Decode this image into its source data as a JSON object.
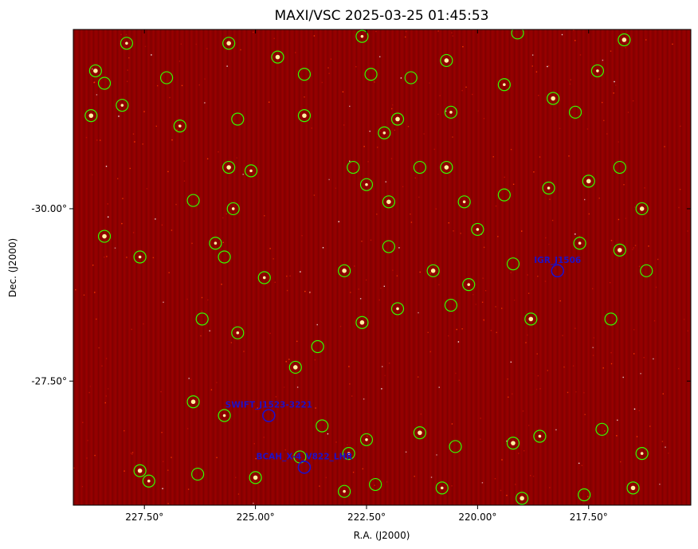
{
  "figure": {
    "title": "MAXI/VSC 2025-03-25 01:45:53",
    "xlabel": "R.A. (J2000)",
    "ylabel": "Dec. (J2000)",
    "x_ticks": [
      "227.50°",
      "225.00°",
      "222.50°",
      "220.00°",
      "217.50°"
    ],
    "y_ticks": [
      "-30.00°",
      "-27.50°"
    ]
  },
  "chart_data": {
    "type": "scatter",
    "title": "MAXI/VSC 2025-03-25 01:45:53",
    "xlabel": "R.A. (J2000)",
    "ylabel": "Dec. (J2000)",
    "x_tick_values": [
      227.5,
      225.0,
      222.5,
      220.0,
      217.5
    ],
    "y_tick_values": [
      -30.0,
      -27.5
    ],
    "xlim": [
      229.1,
      215.2
    ],
    "ylim": [
      -32.6,
      -25.7
    ],
    "background": {
      "colormap": "hot",
      "base_color": "#8b0000"
    },
    "grid": false,
    "legend": "none",
    "catalog_circle_color": "#33ff00",
    "target_color": "#1e10c8",
    "targets": [
      {
        "label": "IGR_J1506",
        "ra": 218.2,
        "dec": -29.1
      },
      {
        "label": "SWIFT_J1523-3221",
        "ra": 224.7,
        "dec": -27.0
      },
      {
        "label": "BCAH_X-4_V822_LHR",
        "ra": 223.9,
        "dec": -26.25
      }
    ],
    "catalog_sources": [
      {
        "ra": 227.9,
        "dec": -32.4
      },
      {
        "ra": 228.6,
        "dec": -32.0
      },
      {
        "ra": 228.4,
        "dec": -31.82
      },
      {
        "ra": 228.7,
        "dec": -31.35
      },
      {
        "ra": 228.0,
        "dec": -31.5
      },
      {
        "ra": 227.0,
        "dec": -31.9
      },
      {
        "ra": 226.7,
        "dec": -31.2
      },
      {
        "ra": 225.6,
        "dec": -32.4
      },
      {
        "ra": 225.4,
        "dec": -31.3
      },
      {
        "ra": 225.6,
        "dec": -30.6
      },
      {
        "ra": 225.1,
        "dec": -30.55
      },
      {
        "ra": 226.4,
        "dec": -30.12
      },
      {
        "ra": 225.5,
        "dec": -30.0
      },
      {
        "ra": 224.5,
        "dec": -32.2
      },
      {
        "ra": 223.9,
        "dec": -31.95
      },
      {
        "ra": 223.9,
        "dec": -31.35
      },
      {
        "ra": 222.6,
        "dec": -32.5
      },
      {
        "ra": 222.4,
        "dec": -31.95
      },
      {
        "ra": 222.1,
        "dec": -31.1
      },
      {
        "ra": 221.8,
        "dec": -31.3
      },
      {
        "ra": 221.5,
        "dec": -31.9
      },
      {
        "ra": 220.7,
        "dec": -32.15
      },
      {
        "ra": 220.6,
        "dec": -31.4
      },
      {
        "ra": 219.1,
        "dec": -32.55
      },
      {
        "ra": 219.4,
        "dec": -31.8
      },
      {
        "ra": 218.3,
        "dec": -31.6
      },
      {
        "ra": 217.8,
        "dec": -31.4
      },
      {
        "ra": 216.7,
        "dec": -32.45
      },
      {
        "ra": 217.3,
        "dec": -32.0
      },
      {
        "ra": 222.8,
        "dec": -30.6
      },
      {
        "ra": 222.5,
        "dec": -30.35
      },
      {
        "ra": 222.0,
        "dec": -30.1
      },
      {
        "ra": 221.3,
        "dec": -30.6
      },
      {
        "ra": 220.7,
        "dec": -30.6
      },
      {
        "ra": 220.3,
        "dec": -30.1
      },
      {
        "ra": 219.4,
        "dec": -30.2
      },
      {
        "ra": 218.4,
        "dec": -30.3
      },
      {
        "ra": 217.5,
        "dec": -30.4
      },
      {
        "ra": 216.8,
        "dec": -30.6
      },
      {
        "ra": 216.3,
        "dec": -30.0
      },
      {
        "ra": 225.9,
        "dec": -29.5
      },
      {
        "ra": 225.7,
        "dec": -29.3
      },
      {
        "ra": 224.8,
        "dec": -29.0
      },
      {
        "ra": 223.0,
        "dec": -29.1
      },
      {
        "ra": 222.0,
        "dec": -29.45
      },
      {
        "ra": 221.0,
        "dec": -29.1
      },
      {
        "ra": 220.0,
        "dec": -29.7
      },
      {
        "ra": 219.2,
        "dec": -29.2
      },
      {
        "ra": 217.7,
        "dec": -29.5
      },
      {
        "ra": 216.8,
        "dec": -29.4
      },
      {
        "ra": 216.2,
        "dec": -29.1
      },
      {
        "ra": 228.4,
        "dec": -29.6
      },
      {
        "ra": 227.6,
        "dec": -29.3
      },
      {
        "ra": 226.2,
        "dec": -28.4
      },
      {
        "ra": 225.4,
        "dec": -28.2
      },
      {
        "ra": 224.1,
        "dec": -27.7
      },
      {
        "ra": 223.6,
        "dec": -28.0
      },
      {
        "ra": 222.6,
        "dec": -28.35
      },
      {
        "ra": 221.8,
        "dec": -28.55
      },
      {
        "ra": 220.6,
        "dec": -28.6
      },
      {
        "ra": 220.2,
        "dec": -28.9
      },
      {
        "ra": 218.8,
        "dec": -28.4
      },
      {
        "ra": 217.0,
        "dec": -28.4
      },
      {
        "ra": 226.4,
        "dec": -27.2
      },
      {
        "ra": 225.7,
        "dec": -27.0
      },
      {
        "ra": 223.5,
        "dec": -26.85
      },
      {
        "ra": 222.5,
        "dec": -26.65
      },
      {
        "ra": 221.3,
        "dec": -26.75
      },
      {
        "ra": 220.5,
        "dec": -26.55
      },
      {
        "ra": 219.2,
        "dec": -26.6
      },
      {
        "ra": 218.6,
        "dec": -26.7
      },
      {
        "ra": 217.2,
        "dec": -26.8
      },
      {
        "ra": 216.3,
        "dec": -26.45
      },
      {
        "ra": 227.6,
        "dec": -26.2
      },
      {
        "ra": 226.3,
        "dec": -26.15
      },
      {
        "ra": 225.0,
        "dec": -26.1
      },
      {
        "ra": 223.0,
        "dec": -25.9
      },
      {
        "ra": 222.3,
        "dec": -26.0
      },
      {
        "ra": 220.8,
        "dec": -25.95
      },
      {
        "ra": 219.0,
        "dec": -25.8
      },
      {
        "ra": 217.6,
        "dec": -25.85
      },
      {
        "ra": 216.5,
        "dec": -25.95
      },
      {
        "ra": 227.4,
        "dec": -26.05
      },
      {
        "ra": 224.0,
        "dec": -26.4
      },
      {
        "ra": 222.9,
        "dec": -26.45
      }
    ]
  }
}
